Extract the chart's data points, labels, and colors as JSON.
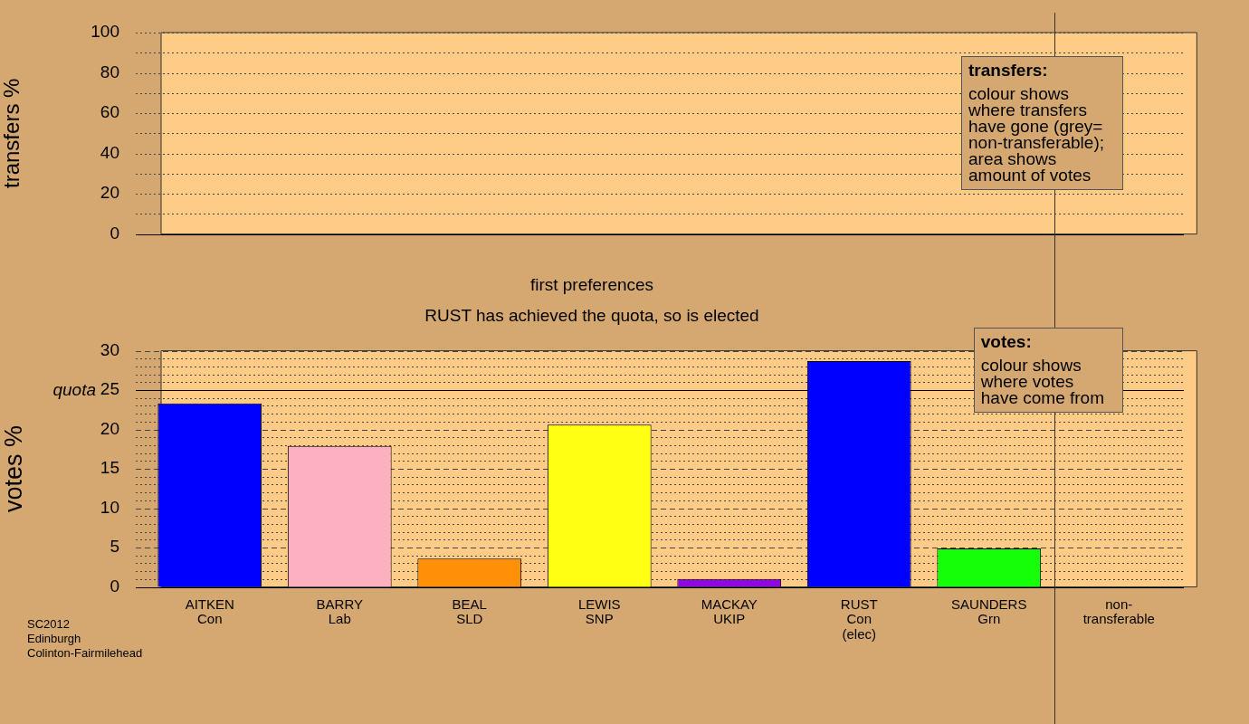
{
  "chart_data": [
    {
      "type": "bar",
      "ylabel": "transfers %",
      "categories": [
        null,
        null,
        null,
        null,
        null,
        null,
        null,
        null
      ],
      "values": [
        null,
        null,
        null,
        null,
        null,
        null,
        null,
        null
      ],
      "ylim": [
        0,
        100
      ],
      "yticks": [
        0,
        {
          "value": 10,
          "label": null
        },
        20,
        {
          "value": 30,
          "label": null
        },
        40,
        {
          "value": 50,
          "label": null
        },
        60,
        {
          "value": 70,
          "label": null
        },
        80,
        {
          "value": 90,
          "label": null
        },
        100
      ],
      "grid": "y",
      "tick_labels": "y",
      "annotations": [
        "transfers:\ncolour shows\nwhere transfers\nhave gone (grey=\nnon-transferable);\narea shows\namount of votes"
      ]
    },
    {
      "type": "bar",
      "title": "first preferences",
      "subtitle": "RUST has achieved the quota, so is elected",
      "ylabel": "votes %",
      "categories": [
        "AITKEN\nCon",
        "BARRY\nLab",
        "BEAL\nSLD",
        "LEWIS\nSNP",
        "MACKAY\nUKIP",
        "RUST\nCon\n(elec)",
        "SAUNDERS\nGrn",
        "non-\ntransferable"
      ],
      "values": [
        23.3,
        17.9,
        3.6,
        20.6,
        1.0,
        28.7,
        4.9,
        null
      ],
      "colors": [
        "#0000ff",
        "#fcb0c0",
        "#ff9008",
        "#ffff14",
        "#9008e0",
        "#0000ff",
        "#14ff08",
        "#909090"
      ],
      "ylim": [
        0,
        30
      ],
      "yticks": [
        0,
        {
          "value": 1,
          "label": null
        },
        {
          "value": 2,
          "label": null
        },
        {
          "value": 3,
          "label": null
        },
        {
          "value": 4,
          "label": null
        },
        5,
        {
          "value": 6,
          "label": null
        },
        {
          "value": 7,
          "label": null
        },
        {
          "value": 8,
          "label": null
        },
        {
          "value": 9,
          "label": null
        },
        10,
        {
          "value": 11,
          "label": null
        },
        {
          "value": 12,
          "label": null
        },
        {
          "value": 13,
          "label": null
        },
        {
          "value": 14,
          "label": null
        },
        15,
        {
          "value": 16,
          "label": null
        },
        {
          "value": 17,
          "label": null
        },
        {
          "value": 18,
          "label": null
        },
        {
          "value": 19,
          "label": null
        },
        20,
        {
          "value": 21,
          "label": null
        },
        {
          "value": 22,
          "label": null
        },
        {
          "value": 23,
          "label": null
        },
        {
          "value": 24,
          "label": null
        },
        25,
        {
          "value": 26,
          "label": null
        },
        {
          "value": 27,
          "label": null
        },
        {
          "value": 28,
          "label": null
        },
        {
          "value": 29,
          "label": null
        },
        30
      ],
      "grid": "y",
      "ref_lines": [
        {
          "axis": "y",
          "value": 25,
          "label": "quota"
        }
      ],
      "annotations": [
        "votes:\ncolour shows\nwhere votes\nhave come from",
        "SC2012\nEdinburgh\nColinton-Fairmilehead"
      ]
    }
  ]
}
